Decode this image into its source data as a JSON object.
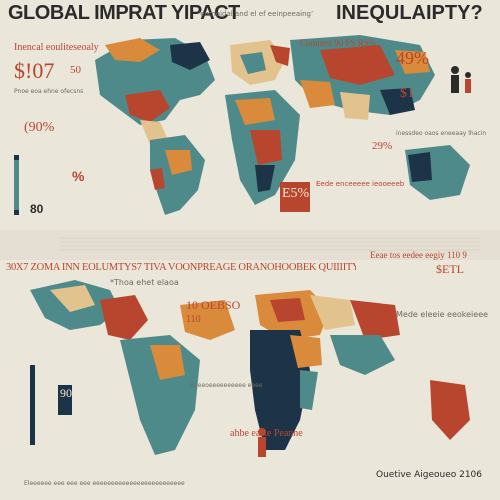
{
  "header": {
    "title_left": "GLOBAL IMPRAT YIPACT",
    "title_mid": "‘enmoidal and el ef eeinpeeaing’",
    "title_right": "INEQULAIPTY?"
  },
  "top_left": {
    "line1": "Inencal eouliteseoaly",
    "big_stat": "$!07",
    "sub_stat": "50",
    "caption": "Pnoe eoa ehne ofecsns",
    "pct": "(90%",
    "bottom_pct": "%",
    "bottom_num": "80"
  },
  "top_right": {
    "line1": "Comnesi 90 FS RS%",
    "big_stat": "49%",
    "stat2": "$1",
    "caption": "inessdeo oaos eneeaay lhacin",
    "pct": "29%"
  },
  "center_box": {
    "label": "E5%",
    "caption": "Eede enceeeee ieooeeeb"
  },
  "mid_band": {
    "headline": "30X7 ZOMA INN EOLUMTYS7 TIVA VOONPREAGE ORANOHOOBEK QUIIIITY",
    "right_caption": "Eeae tos eedee eegiy 110 9",
    "right_stat": "$ETL",
    "sub_caption": "*Thoa ehet elaoa"
  },
  "bottom": {
    "left_label": "90",
    "center_stat": "10 OEBSO",
    "mid_num": "110",
    "right_caption": "Mede eleeie eeokeieee",
    "red_caption": "ahbe eaRe Peanne",
    "center_caption": "Beeeoeeeeeeeeee eeee",
    "footer_left": "Eleeeeee eee eee eee eeeeeeeeeeeeeeeeeeeeeeeee",
    "footer_right": "Ouetive Aigeoueo 2106"
  },
  "colors": {
    "teal": "#4f8a8b",
    "dark_teal": "#1f4d5c",
    "navy": "#1d3448",
    "orange": "#d98a3a",
    "red": "#b8462f",
    "tan": "#e3c38d",
    "cream": "#ebe6da"
  }
}
